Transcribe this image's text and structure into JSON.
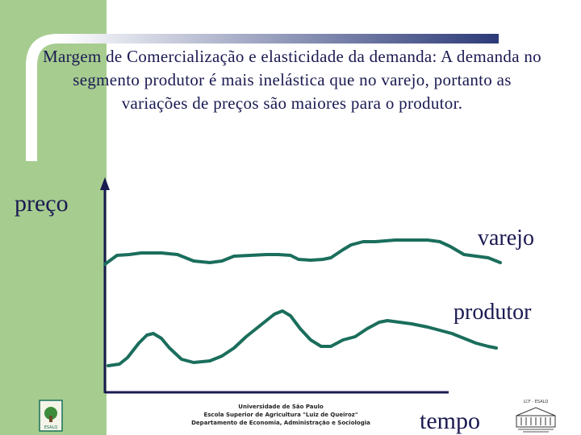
{
  "slide": {
    "title": "Margem de Comercialização e elasticidade da demanda: A demanda no segmento produtor é mais inelástica que no varejo, portanto as variações de preços são maiores para o produtor.",
    "y_axis_label": "preço",
    "x_axis_label": "tempo",
    "series_labels": {
      "retail": "varejo",
      "producer": "produtor"
    },
    "institution": {
      "line1": "Universidade de São Paulo",
      "line2": "Escola Superior de Agricultura \"Luiz de Queiroz\"",
      "line3": "Departamento de Economia, Administração e Sociologia"
    },
    "logo_left_text": "ESALQ",
    "logo_right_text": "LCF - ESALQ"
  },
  "colors": {
    "band": "#a6cc8f",
    "accent_bar": "#2c3a78",
    "curve": "#1a6e5c",
    "axis": "#1a1a52",
    "text": "#1a1a52"
  }
}
